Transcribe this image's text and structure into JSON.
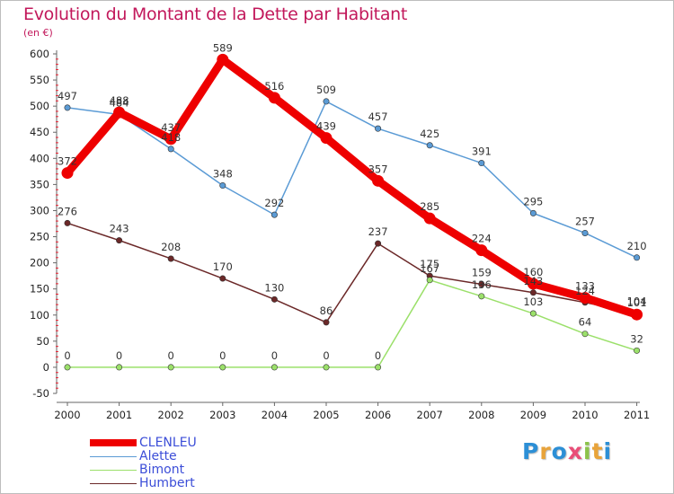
{
  "title": "Evolution du Montant de la Dette par Habitant",
  "subtitle": "(en €)",
  "logo": {
    "text": "Proxiti",
    "colors": [
      "#2c8fd6",
      "#e8a33a",
      "#2c8fd6",
      "#e94e77",
      "#8bc34a",
      "#e8a33a",
      "#2c8fd6"
    ]
  },
  "chart_data": {
    "type": "line",
    "x": [
      "2000",
      "2001",
      "2002",
      "2003",
      "2004",
      "2005",
      "2006",
      "2007",
      "2008",
      "2009",
      "2010",
      "2011"
    ],
    "yticks": [
      "600",
      "550",
      "500",
      "450",
      "400",
      "350",
      "300",
      "250",
      "200",
      "150",
      "100",
      "50",
      "0",
      "-50"
    ],
    "ylim": [
      -50,
      600
    ],
    "grid": false,
    "legend_position": "bottom-left",
    "series": [
      {
        "name": "CLENLEU",
        "color": "#ee0000",
        "values": [
          372,
          488,
          437,
          589,
          516,
          439,
          357,
          285,
          224,
          160,
          133,
          101
        ],
        "labels": [
          "372",
          "488",
          "437",
          "589",
          "516",
          "439",
          "357",
          "285",
          "224",
          "160",
          "133",
          "101"
        ]
      },
      {
        "name": "Alette",
        "color": "#5b9bd5",
        "values": [
          497,
          484,
          418,
          348,
          292,
          509,
          457,
          425,
          391,
          295,
          257,
          210
        ],
        "labels": [
          "497",
          "484",
          "418",
          "348",
          "292",
          "509",
          "457",
          "425",
          "391",
          "295",
          "257",
          "210"
        ]
      },
      {
        "name": "Bimont",
        "color": "#9be06a",
        "values": [
          0,
          0,
          0,
          0,
          0,
          0,
          0,
          167,
          136,
          103,
          64,
          32
        ],
        "labels": [
          "0",
          "0",
          "0",
          "0",
          "0",
          "0",
          "0",
          "167",
          "136",
          "103",
          "64",
          "32"
        ]
      },
      {
        "name": "Humbert",
        "color": "#6b2828",
        "values": [
          276,
          243,
          208,
          170,
          130,
          86,
          237,
          175,
          159,
          143,
          124,
          104
        ],
        "labels": [
          "276",
          "243",
          "208",
          "170",
          "130",
          "86",
          "237",
          "175",
          "159",
          "143",
          "124",
          "104"
        ]
      }
    ]
  }
}
